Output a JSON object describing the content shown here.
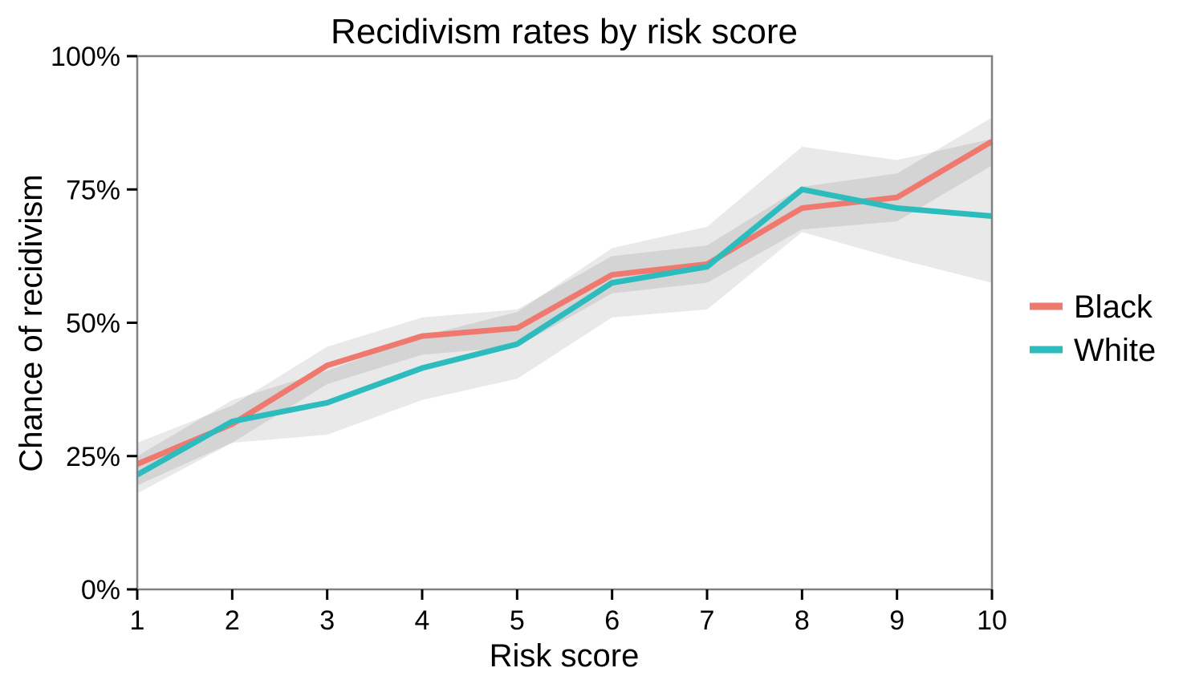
{
  "chart_data": {
    "type": "line",
    "title": "Recidivism rates by risk score",
    "xlabel": "Risk score",
    "ylabel": "Chance of recidivism",
    "x": [
      1,
      2,
      3,
      4,
      5,
      6,
      7,
      8,
      9,
      10
    ],
    "xlim": [
      1,
      10
    ],
    "ylim": [
      0,
      100
    ],
    "xticks": [
      1,
      2,
      3,
      4,
      5,
      6,
      7,
      8,
      9,
      10
    ],
    "xtick_labels": [
      "1",
      "2",
      "3",
      "4",
      "5",
      "6",
      "7",
      "8",
      "9",
      "10"
    ],
    "yticks": [
      0,
      25,
      50,
      75,
      100
    ],
    "ytick_labels": [
      "0%",
      "25%",
      "50%",
      "75%",
      "100%"
    ],
    "grid": false,
    "legend_position": "right-center",
    "series": [
      {
        "name": "Black",
        "color": "#F0796F",
        "values": [
          23.5,
          31,
          42,
          47.5,
          49,
          59,
          61,
          71.5,
          73.5,
          84
        ],
        "ci_lower": [
          19.5,
          27.5,
          38.5,
          44,
          45.5,
          55.5,
          57.5,
          67.5,
          69,
          79.5
        ],
        "ci_upper": [
          27.5,
          34.5,
          45.5,
          51,
          52.5,
          62.5,
          64.5,
          75.5,
          78,
          88.5
        ]
      },
      {
        "name": "White",
        "color": "#2CBCBE",
        "values": [
          21.5,
          31.5,
          35,
          41.5,
          46,
          57.5,
          60.5,
          75,
          71.5,
          70
        ],
        "ci_lower": [
          18,
          27.5,
          29,
          35.5,
          39.5,
          51,
          52.5,
          67,
          62,
          57.5
        ],
        "ci_upper": [
          25,
          35.5,
          41,
          47.5,
          52,
          64,
          68,
          83,
          80.5,
          84.5
        ]
      }
    ],
    "style": {
      "ci_fill": "#000000",
      "ci_opacity": 0.085,
      "panel_border_color": "#818181",
      "tick_color": "#000000",
      "text_color": "#000000",
      "background": "#FFFFFF",
      "line_width": 7
    }
  }
}
